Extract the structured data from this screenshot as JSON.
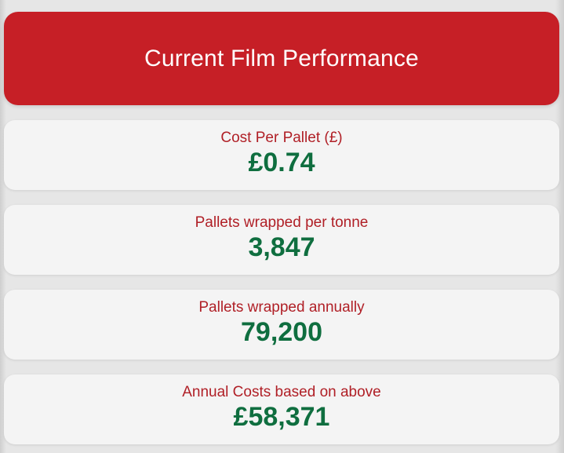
{
  "header": {
    "title": "Current Film Performance"
  },
  "metrics": [
    {
      "label": "Cost Per Pallet (£)",
      "value": "£0.74"
    },
    {
      "label": "Pallets wrapped per tonne",
      "value": "3,847"
    },
    {
      "label": "Pallets wrapped annually",
      "value": "79,200"
    },
    {
      "label": "Annual Costs based on above",
      "value": "£58,371"
    }
  ],
  "colors": {
    "header_bg": "#c61f26",
    "label_text": "#b01f26",
    "value_text": "#0f6e3f",
    "card_bg": "#f4f4f4"
  }
}
